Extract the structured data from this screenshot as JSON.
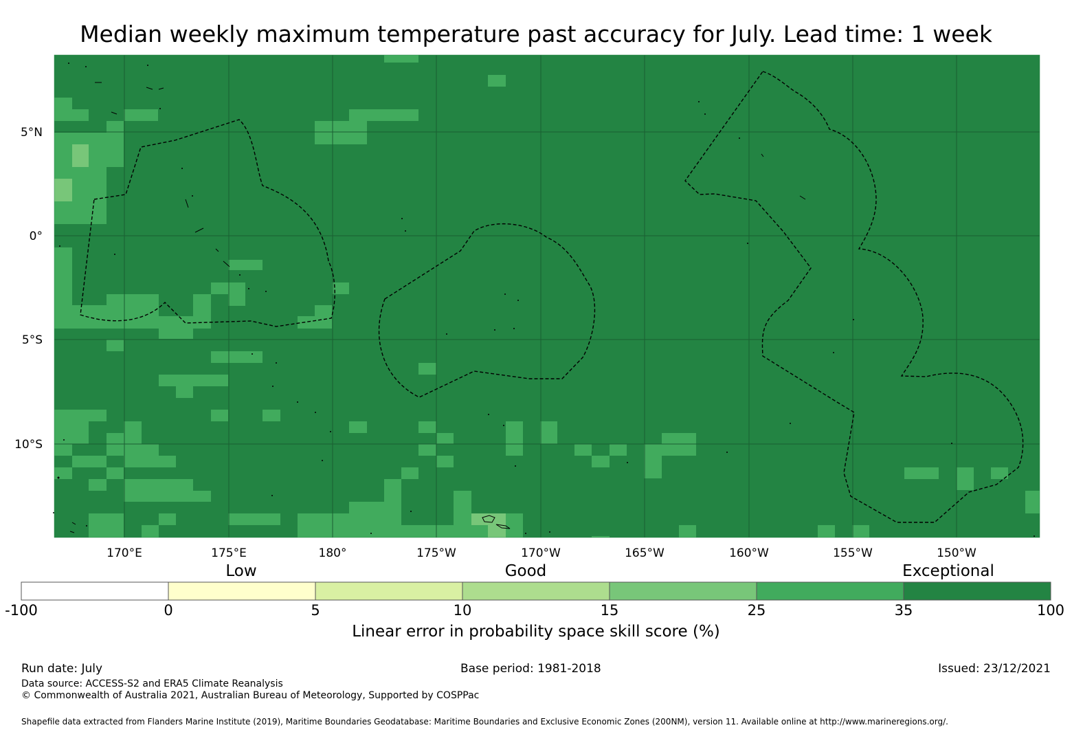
{
  "title": "Median weekly maximum temperature past accuracy for July. Lead time: 1 week",
  "map": {
    "background_color": "#238443",
    "gridline_color": "#1a5e32",
    "lon_ticks": [
      "170°E",
      "175°E",
      "180°",
      "175°W",
      "170°W",
      "165°W",
      "160°W",
      "155°W",
      "150°W"
    ],
    "lat_ticks": [
      "5°N",
      "0°",
      "5°S",
      "10°S"
    ]
  },
  "legend": {
    "category_labels": [
      "Low",
      "Good",
      "Exceptional"
    ],
    "bins": [
      {
        "from": -100,
        "to": 0,
        "color": "#ffffff"
      },
      {
        "from": 0,
        "to": 5,
        "color": "#ffffcc"
      },
      {
        "from": 5,
        "to": 10,
        "color": "#d9f0a3"
      },
      {
        "from": 10,
        "to": 15,
        "color": "#addd8e"
      },
      {
        "from": 15,
        "to": 25,
        "color": "#78c679"
      },
      {
        "from": 25,
        "to": 35,
        "color": "#41ab5d"
      },
      {
        "from": 35,
        "to": 100,
        "color": "#238443"
      }
    ],
    "tick_labels": [
      "-100",
      "0",
      "5",
      "10",
      "15",
      "25",
      "35",
      "100"
    ],
    "title": "Linear error in probability space skill score (%)"
  },
  "footer": {
    "run_date": "Run date: July",
    "base_period": "Base period: 1981-2018",
    "issued": "Issued: 23/12/2021",
    "data_source": "Data source: ACCESS-S2 and ERA5 Climate Reanalysis",
    "copyright": "© Commonwealth of Australia 2021, Australian Bureau of Meteorology, Supported by COSPPac",
    "shapefile": "Shapefile data extracted from Flanders Marine Institute (2019), Maritime Boundaries Geodatabase: Maritime Boundaries and Exclusive Economic Zones (200NM), version 11. Available online at http://www.marineregions.org/."
  }
}
